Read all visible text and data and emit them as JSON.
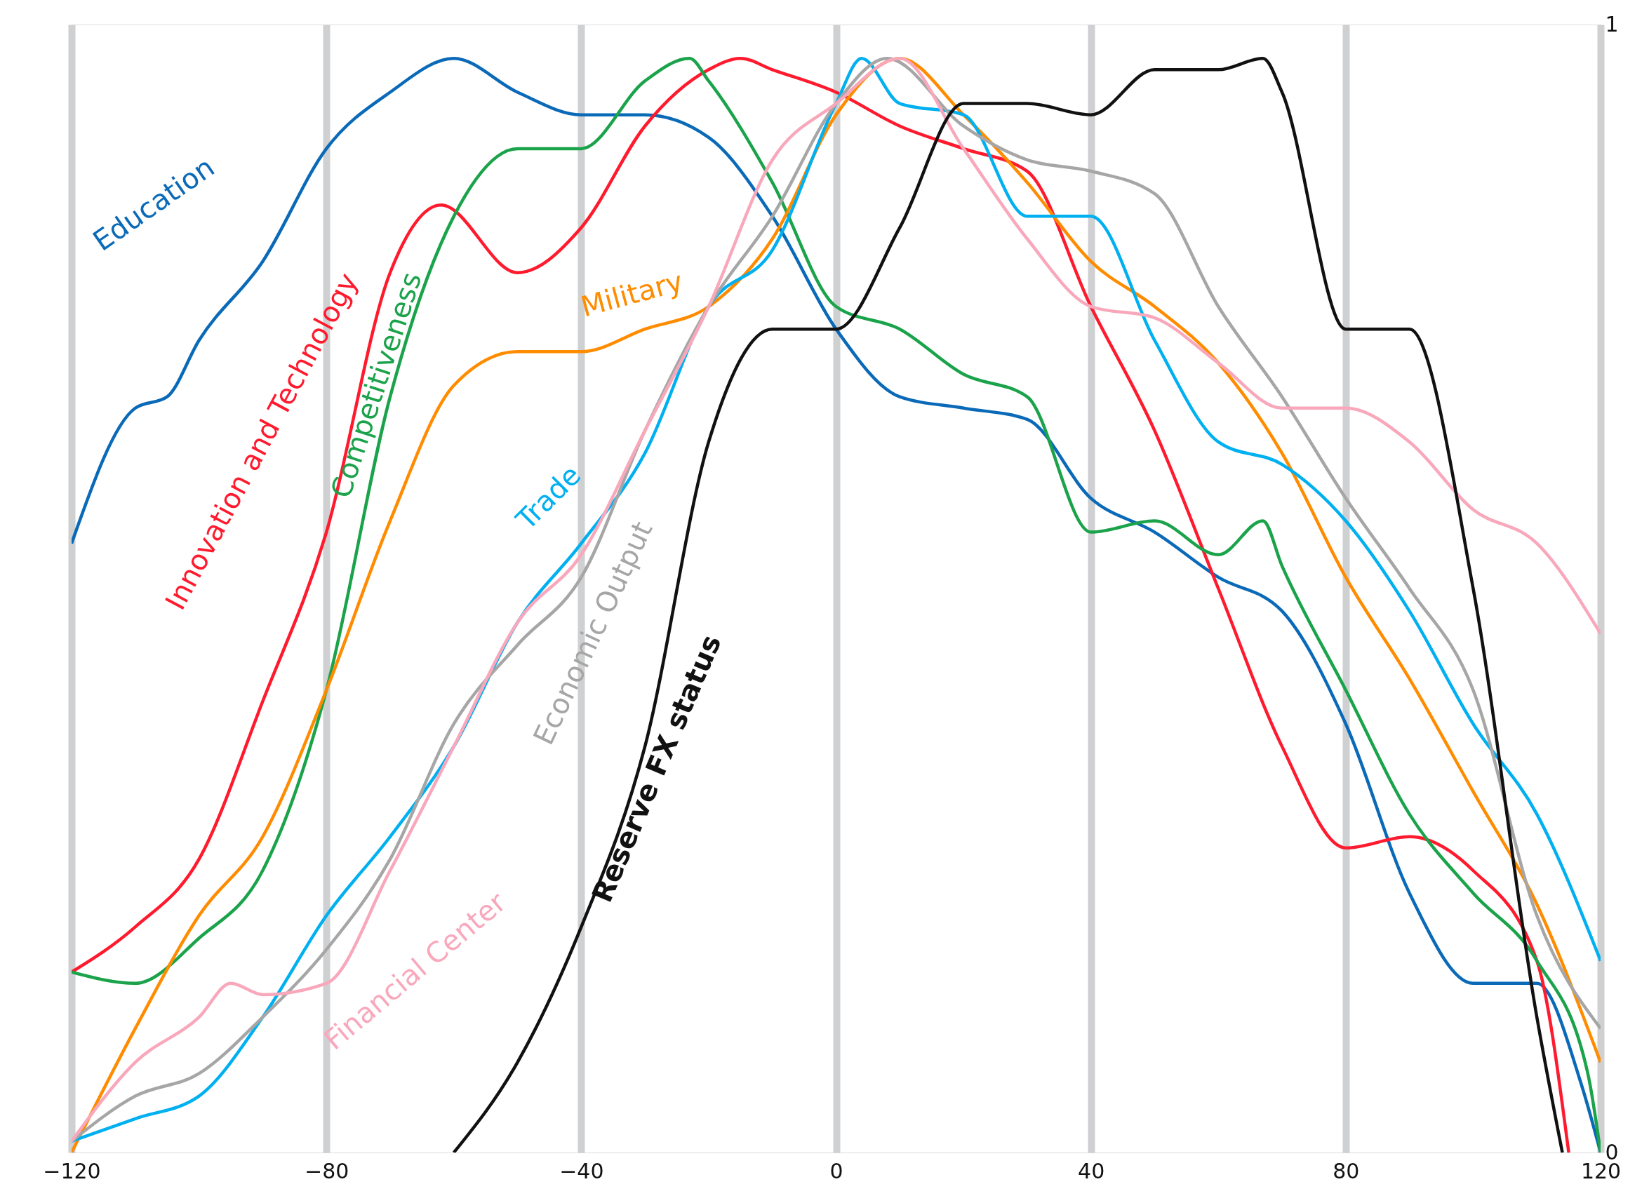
{
  "chart_data": {
    "type": "line",
    "xlim": [
      -120,
      120
    ],
    "xticks": [
      -120,
      -80,
      -40,
      0,
      40,
      80,
      120
    ],
    "ylim": [
      0,
      1
    ],
    "yticks": [
      0,
      1
    ],
    "grid": "x",
    "marker": "none",
    "line_style": "solid",
    "series": [
      {
        "name": "Education",
        "color": "#0a6ab8",
        "x": [
          -120,
          -110,
          -105,
          -100,
          -90,
          -80,
          -70,
          -60,
          -50,
          -40,
          -30,
          -20,
          -10,
          0,
          10,
          20,
          30,
          40,
          50,
          60,
          70,
          80,
          90,
          100,
          110,
          117,
          120
        ],
        "values": [
          0.54,
          0.66,
          0.67,
          0.72,
          0.79,
          0.89,
          0.94,
          0.97,
          0.94,
          0.92,
          0.92,
          0.9,
          0.83,
          0.73,
          0.67,
          0.66,
          0.65,
          0.58,
          0.55,
          0.51,
          0.48,
          0.38,
          0.23,
          0.15,
          0.15,
          0.06,
          0
        ]
      },
      {
        "name": "Innovation and Technology",
        "color": "#ff1a2e",
        "x": [
          -120,
          -110,
          -100,
          -90,
          -80,
          -70,
          -62,
          -50,
          -40,
          -30,
          -20,
          -15,
          -10,
          0,
          10,
          20,
          30,
          40,
          50,
          60,
          70,
          80,
          90,
          100,
          110,
          115
        ],
        "values": [
          0.16,
          0.2,
          0.26,
          0.4,
          0.55,
          0.78,
          0.84,
          0.78,
          0.82,
          0.91,
          0.96,
          0.97,
          0.96,
          0.94,
          0.91,
          0.89,
          0.87,
          0.75,
          0.64,
          0.5,
          0.36,
          0.27,
          0.28,
          0.25,
          0.17,
          0
        ]
      },
      {
        "name": "Competitiveness",
        "color": "#1aa34a",
        "x": [
          -120,
          -110,
          -100,
          -90,
          -80,
          -70,
          -60,
          -50,
          -40,
          -30,
          -23,
          -20,
          -10,
          0,
          10,
          20,
          30,
          40,
          50,
          60,
          67,
          70,
          80,
          90,
          100,
          110,
          118,
          120
        ],
        "values": [
          0.16,
          0.15,
          0.19,
          0.25,
          0.41,
          0.67,
          0.83,
          0.89,
          0.89,
          0.95,
          0.97,
          0.95,
          0.86,
          0.75,
          0.73,
          0.69,
          0.67,
          0.55,
          0.56,
          0.53,
          0.56,
          0.52,
          0.41,
          0.3,
          0.23,
          0.17,
          0.07,
          0
        ]
      },
      {
        "name": "Military",
        "color": "#ff8c00",
        "x": [
          -120,
          -110,
          -100,
          -90,
          -80,
          -70,
          -60,
          -50,
          -40,
          -30,
          -20,
          -10,
          0,
          10,
          20,
          30,
          40,
          50,
          60,
          70,
          80,
          90,
          100,
          110,
          120
        ],
        "values": [
          0,
          0.11,
          0.21,
          0.28,
          0.41,
          0.56,
          0.68,
          0.71,
          0.71,
          0.73,
          0.75,
          0.81,
          0.92,
          0.97,
          0.92,
          0.86,
          0.79,
          0.75,
          0.7,
          0.62,
          0.51,
          0.42,
          0.32,
          0.22,
          0.08
        ]
      },
      {
        "name": "Trade",
        "color": "#00b0f0",
        "x": [
          -120,
          -110,
          -100,
          -90,
          -80,
          -70,
          -60,
          -50,
          -40,
          -30,
          -20,
          -10,
          0,
          4,
          10,
          20,
          30,
          40,
          50,
          60,
          70,
          80,
          90,
          100,
          110,
          120
        ],
        "values": [
          0.01,
          0.03,
          0.05,
          0.12,
          0.21,
          0.28,
          0.36,
          0.47,
          0.54,
          0.62,
          0.75,
          0.8,
          0.93,
          0.97,
          0.93,
          0.92,
          0.83,
          0.83,
          0.72,
          0.63,
          0.61,
          0.56,
          0.48,
          0.38,
          0.3,
          0.17
        ]
      },
      {
        "name": "Economic Output",
        "color": "#a6a6a6",
        "x": [
          -120,
          -110,
          -100,
          -90,
          -80,
          -70,
          -60,
          -50,
          -40,
          -30,
          -20,
          -10,
          0,
          8,
          20,
          30,
          40,
          50,
          60,
          70,
          80,
          90,
          100,
          110,
          120
        ],
        "values": [
          0.01,
          0.05,
          0.07,
          0.12,
          0.18,
          0.26,
          0.38,
          0.45,
          0.51,
          0.64,
          0.75,
          0.83,
          0.93,
          0.97,
          0.91,
          0.88,
          0.87,
          0.85,
          0.75,
          0.67,
          0.58,
          0.5,
          0.41,
          0.21,
          0.11
        ]
      },
      {
        "name": "Financial Center",
        "color": "#f9a8bc",
        "x": [
          -120,
          -110,
          -100,
          -95,
          -90,
          -80,
          -70,
          -60,
          -50,
          -40,
          -30,
          -20,
          -10,
          0,
          10,
          20,
          30,
          40,
          50,
          60,
          70,
          80,
          90,
          100,
          110,
          120
        ],
        "values": [
          0.01,
          0.08,
          0.12,
          0.15,
          0.14,
          0.15,
          0.25,
          0.36,
          0.47,
          0.53,
          0.64,
          0.75,
          0.88,
          0.93,
          0.97,
          0.89,
          0.81,
          0.75,
          0.74,
          0.7,
          0.66,
          0.66,
          0.63,
          0.57,
          0.54,
          0.46
        ]
      },
      {
        "name": "Reserve FX status",
        "color": "#111111",
        "x": [
          -60,
          -50,
          -40,
          -30,
          -20,
          -10,
          0,
          10,
          20,
          30,
          40,
          50,
          60,
          67,
          70,
          80,
          90,
          100,
          110,
          114
        ],
        "values": [
          0,
          0.08,
          0.2,
          0.36,
          0.63,
          0.73,
          0.73,
          0.82,
          0.93,
          0.93,
          0.92,
          0.96,
          0.96,
          0.97,
          0.94,
          0.73,
          0.73,
          0.5,
          0.12,
          0
        ]
      }
    ]
  }
}
